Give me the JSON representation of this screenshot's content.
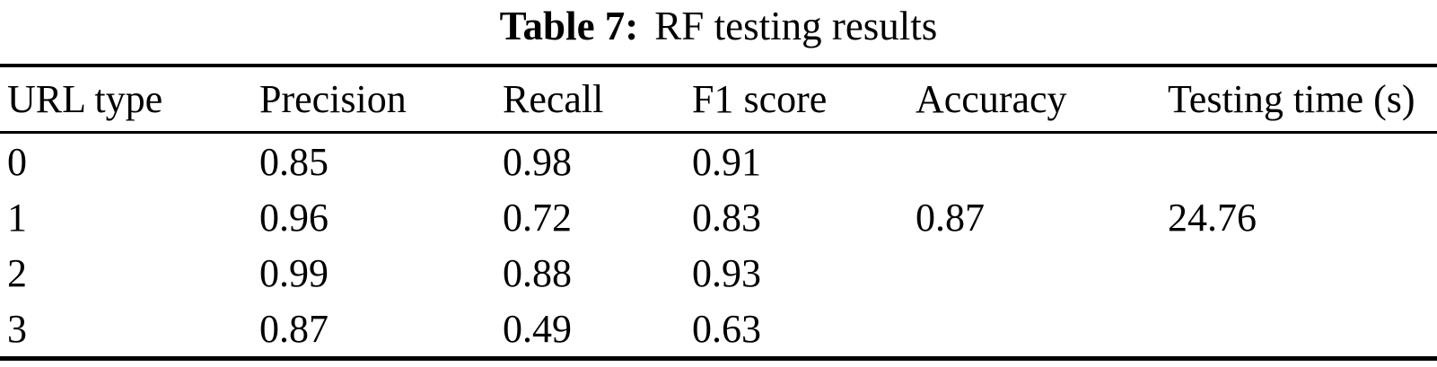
{
  "caption": {
    "label": "Table 7:",
    "title": "RF testing results"
  },
  "table": {
    "columns": [
      "URL type",
      "Precision",
      "Recall",
      "F1 score",
      "Accuracy",
      "Testing time (s)"
    ],
    "rows": [
      [
        "0",
        "0.85",
        "0.98",
        "0.91",
        "",
        ""
      ],
      [
        "1",
        "0.96",
        "0.72",
        "0.83",
        "0.87",
        "24.76"
      ],
      [
        "2",
        "0.99",
        "0.88",
        "0.93",
        "",
        ""
      ],
      [
        "3",
        "0.87",
        "0.49",
        "0.63",
        "",
        ""
      ]
    ]
  }
}
